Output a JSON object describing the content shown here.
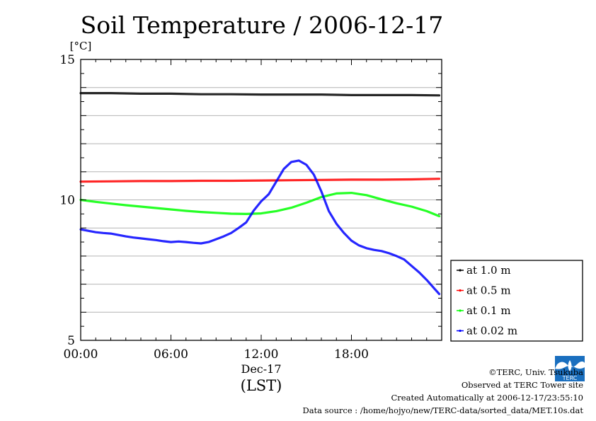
{
  "chart_data": {
    "type": "line",
    "title": "Soil Temperature / 2006-12-17",
    "ylabel": "[°C]",
    "xlabel": "(LST)",
    "x_date_label": "Dec-17",
    "xlim": [
      "00:00",
      "24:00"
    ],
    "ylim": [
      5,
      15
    ],
    "x_ticks": [
      "00:00",
      "06:00",
      "12:00",
      "18:00"
    ],
    "y_ticks": [
      "5",
      "10",
      "15"
    ],
    "grid": true,
    "legend_position": "right",
    "series": [
      {
        "name": "at 1.0 m",
        "color": "#000000",
        "x": [
          "00:00",
          "02:00",
          "04:00",
          "06:00",
          "08:00",
          "10:00",
          "12:00",
          "14:00",
          "16:00",
          "18:00",
          "20:00",
          "22:00",
          "23:50"
        ],
        "y": [
          13.8,
          13.8,
          13.78,
          13.78,
          13.76,
          13.76,
          13.75,
          13.75,
          13.75,
          13.73,
          13.73,
          13.73,
          13.72
        ]
      },
      {
        "name": "at 0.5 m",
        "color": "#ff0000",
        "x": [
          "00:00",
          "02:00",
          "04:00",
          "06:00",
          "08:00",
          "10:00",
          "12:00",
          "14:00",
          "16:00",
          "18:00",
          "20:00",
          "22:00",
          "23:50"
        ],
        "y": [
          10.65,
          10.66,
          10.67,
          10.67,
          10.68,
          10.68,
          10.69,
          10.7,
          10.71,
          10.72,
          10.72,
          10.73,
          10.75
        ]
      },
      {
        "name": "at 0.1 m",
        "color": "#00ff00",
        "x": [
          "00:00",
          "01:00",
          "02:00",
          "03:00",
          "04:00",
          "05:00",
          "06:00",
          "07:00",
          "08:00",
          "09:00",
          "10:00",
          "11:00",
          "12:00",
          "13:00",
          "14:00",
          "15:00",
          "16:00",
          "17:00",
          "18:00",
          "19:00",
          "20:00",
          "21:00",
          "22:00",
          "23:00",
          "23:50"
        ],
        "y": [
          10.0,
          9.93,
          9.87,
          9.81,
          9.76,
          9.71,
          9.66,
          9.61,
          9.57,
          9.54,
          9.51,
          9.5,
          9.52,
          9.6,
          9.72,
          9.9,
          10.1,
          10.23,
          10.25,
          10.17,
          10.02,
          9.88,
          9.76,
          9.6,
          9.42
        ]
      },
      {
        "name": "at 0.02 m",
        "color": "#0000ff",
        "x": [
          "00:00",
          "00:30",
          "01:00",
          "01:30",
          "02:00",
          "02:30",
          "03:00",
          "03:30",
          "04:00",
          "04:30",
          "05:00",
          "05:30",
          "06:00",
          "06:30",
          "07:00",
          "07:30",
          "08:00",
          "08:30",
          "09:00",
          "09:30",
          "10:00",
          "10:30",
          "11:00",
          "11:30",
          "12:00",
          "12:30",
          "13:00",
          "13:30",
          "14:00",
          "14:30",
          "15:00",
          "15:30",
          "16:00",
          "16:30",
          "17:00",
          "17:30",
          "18:00",
          "18:30",
          "19:00",
          "19:30",
          "20:00",
          "20:30",
          "21:00",
          "21:30",
          "22:00",
          "22:30",
          "23:00",
          "23:30",
          "23:50"
        ],
        "y": [
          8.95,
          8.9,
          8.85,
          8.82,
          8.8,
          8.75,
          8.7,
          8.66,
          8.63,
          8.6,
          8.57,
          8.53,
          8.5,
          8.52,
          8.5,
          8.47,
          8.45,
          8.5,
          8.6,
          8.7,
          8.82,
          9.0,
          9.2,
          9.62,
          9.95,
          10.2,
          10.65,
          11.1,
          11.35,
          11.4,
          11.25,
          10.9,
          10.3,
          9.6,
          9.15,
          8.82,
          8.55,
          8.38,
          8.28,
          8.22,
          8.18,
          8.1,
          8.0,
          7.88,
          7.65,
          7.42,
          7.15,
          6.85,
          6.65
        ]
      }
    ]
  },
  "footer": {
    "copyright": "©TERC, Univ. Tsukuba",
    "observed": "Observed at TERC Tower site",
    "created": "Created Automatically at 2006-12-17/23:55:10",
    "source": "Data source : /home/hojyo/new/TERC-data/sorted_data/MET.10s.dat"
  },
  "logo": {
    "text": "TERC",
    "icon": "terc-logo-icon"
  }
}
